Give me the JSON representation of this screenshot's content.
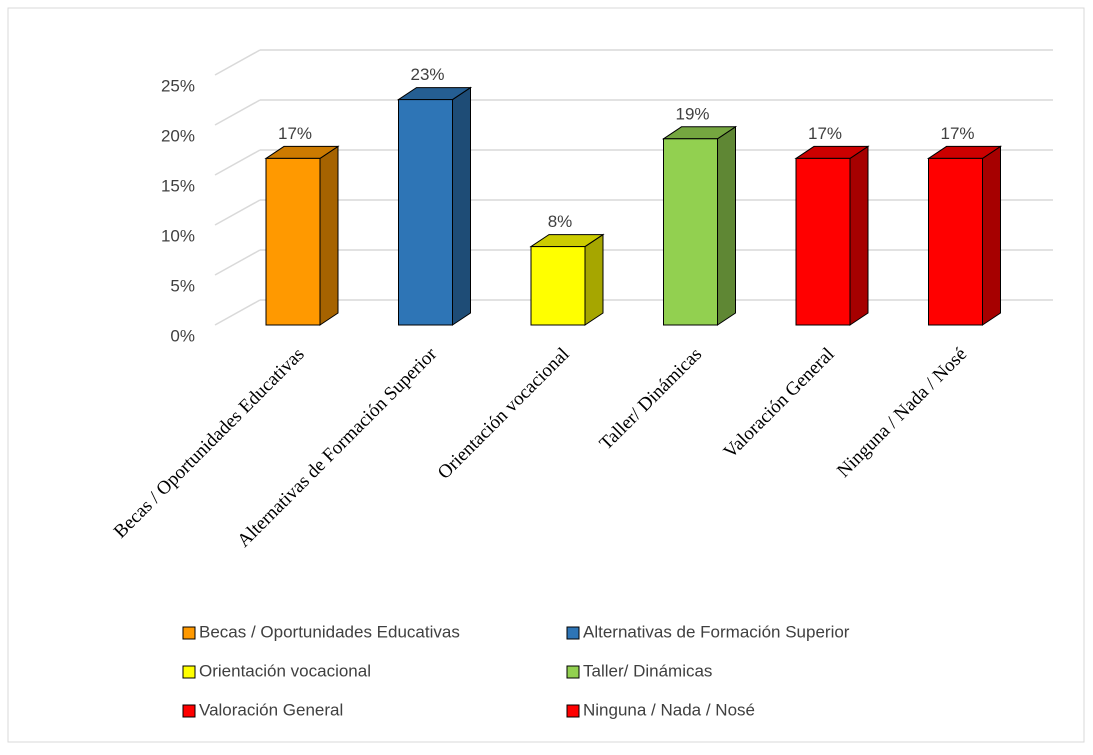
{
  "chart_data": {
    "type": "bar3d",
    "categories": [
      "Becas / Oportunidades Educativas",
      "Alternativas de Formación Superior",
      "Orientación vocacional",
      "Taller/ Dinámicas",
      "Valoración General",
      "Ninguna / Nada / Nosé"
    ],
    "values": [
      17,
      23,
      8,
      19,
      17,
      17
    ],
    "value_labels": [
      "17%",
      "23%",
      "8%",
      "19%",
      "17%",
      "17%"
    ],
    "colors": [
      "#FF9900",
      "#2E75B6",
      "#FFFF00",
      "#92D050",
      "#FF0000",
      "#FF0000"
    ],
    "ylim": [
      0,
      25
    ],
    "yticks": [
      {
        "value": 0,
        "label": "0%"
      },
      {
        "value": 5,
        "label": "5%"
      },
      {
        "value": 10,
        "label": "10%"
      },
      {
        "value": 15,
        "label": "15%"
      },
      {
        "value": 20,
        "label": "20%"
      },
      {
        "value": 25,
        "label": "25%"
      }
    ],
    "grid": true,
    "legend": "bottom"
  }
}
